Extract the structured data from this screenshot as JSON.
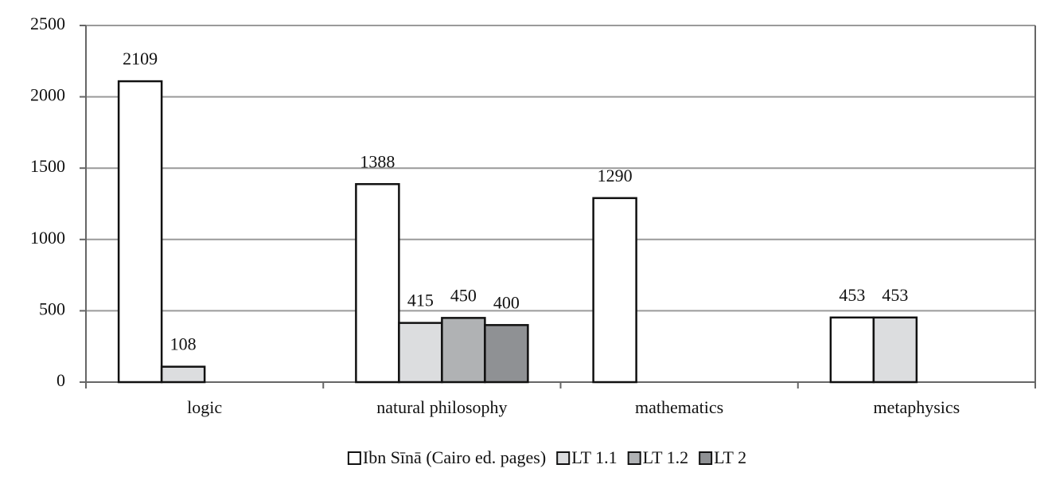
{
  "chart_data": {
    "type": "bar",
    "categories": [
      "logic",
      "natural philosophy",
      "mathematics",
      "metaphysics"
    ],
    "series": [
      {
        "name": "Ibn Sīnā (Cairo ed. pages)",
        "color": "#ffffff",
        "values": [
          2109,
          1388,
          1290,
          453
        ]
      },
      {
        "name": "LT 1.1",
        "color": "#dcdddf",
        "values": [
          108,
          415,
          null,
          453
        ]
      },
      {
        "name": "LT 1.2",
        "color": "#b0b2b4",
        "values": [
          null,
          450,
          null,
          null
        ]
      },
      {
        "name": "LT 2",
        "color": "#8f9194",
        "values": [
          null,
          400,
          null,
          null
        ]
      }
    ],
    "ylim": [
      0,
      2500
    ],
    "yticks": [
      0,
      500,
      1000,
      1500,
      2000,
      2500
    ],
    "grid": true,
    "legend": "bottom"
  }
}
